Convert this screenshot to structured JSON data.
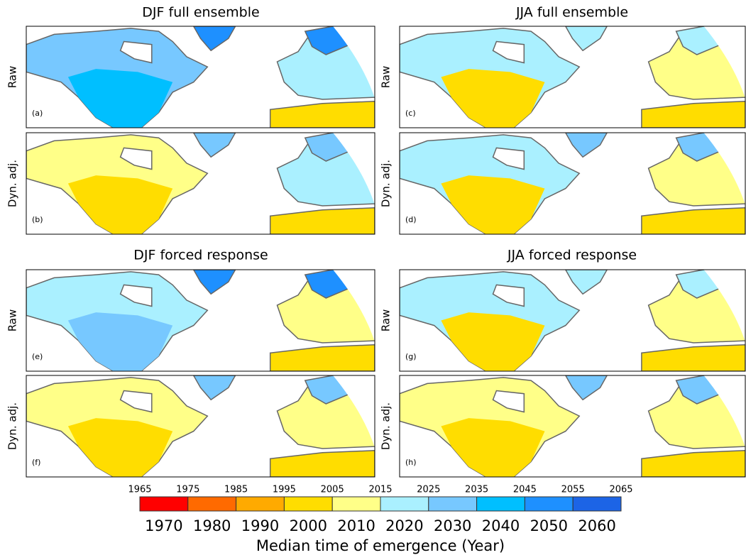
{
  "sections": [
    {
      "title": "DJF full ensemble"
    },
    {
      "title": "JJA full ensemble"
    },
    {
      "title": "DJF forced response"
    },
    {
      "title": "JJA forced response"
    }
  ],
  "panels": [
    {
      "label": "(a)",
      "row_label": "Raw"
    },
    {
      "label": "(b)",
      "row_label": "Dyn. adj."
    },
    {
      "label": "(c)",
      "row_label": "Raw"
    },
    {
      "label": "(d)",
      "row_label": "Dyn. adj."
    },
    {
      "label": "(e)",
      "row_label": "Raw"
    },
    {
      "label": "(f)",
      "row_label": "Dyn. adj."
    },
    {
      "label": "(g)",
      "row_label": "Raw"
    },
    {
      "label": "(h)",
      "row_label": "Dyn. adj."
    }
  ],
  "colorbar": {
    "edges": [
      1965,
      1975,
      1985,
      1995,
      2005,
      2015,
      2025,
      2035,
      2045,
      2055,
      2065
    ],
    "levels": [
      1970,
      1980,
      1990,
      2000,
      2010,
      2020,
      2030,
      2040,
      2050,
      2060
    ],
    "colors": [
      "#ff0000",
      "#ff6a00",
      "#ffaa00",
      "#ffdd00",
      "#ffff88",
      "#aaf0ff",
      "#77c8ff",
      "#00bfff",
      "#1e90ff",
      "#1c64e6"
    ],
    "label": "Median time of emergence (Year)"
  }
}
